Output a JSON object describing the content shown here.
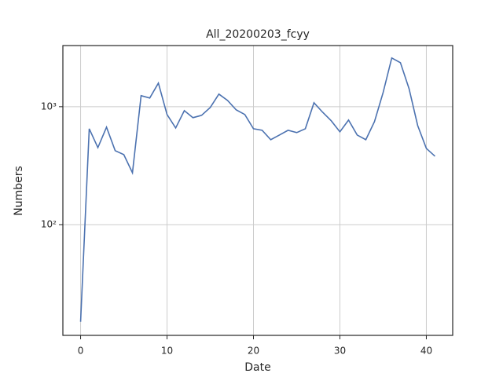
{
  "chart_data": {
    "type": "line",
    "title": "All_20200203_fcyy",
    "x_label": "Date",
    "y_label": "Numbers",
    "x": [
      0,
      1,
      2,
      3,
      4,
      5,
      6,
      7,
      8,
      9,
      10,
      11,
      12,
      13,
      14,
      15,
      16,
      17,
      18,
      19,
      20,
      21,
      22,
      23,
      24,
      25,
      26,
      27,
      28,
      29,
      30,
      31,
      32,
      33,
      34,
      35,
      36,
      37,
      38,
      39,
      40,
      41
    ],
    "values": [
      15,
      650,
      450,
      670,
      424,
      392,
      275,
      1240,
      1184,
      1585,
      858,
      660,
      926,
      807,
      845,
      985,
      1279,
      1130,
      940,
      858,
      650,
      631,
      525,
      575,
      631,
      603,
      650,
      1080,
      898,
      759,
      612,
      770,
      575,
      525,
      747,
      1318,
      2590,
      2362,
      1423,
      692,
      443,
      380
    ],
    "color": "#4c72b0",
    "xlim": [
      -2.05,
      43.05
    ],
    "xticks": [
      0,
      10,
      20,
      30,
      40
    ],
    "ylim": [
      11.5,
      3300
    ],
    "yticks": [
      {
        "value": 100,
        "label": "10²"
      },
      {
        "value": 1000,
        "label": "10³"
      }
    ],
    "y_scale": "log",
    "grid": true
  }
}
